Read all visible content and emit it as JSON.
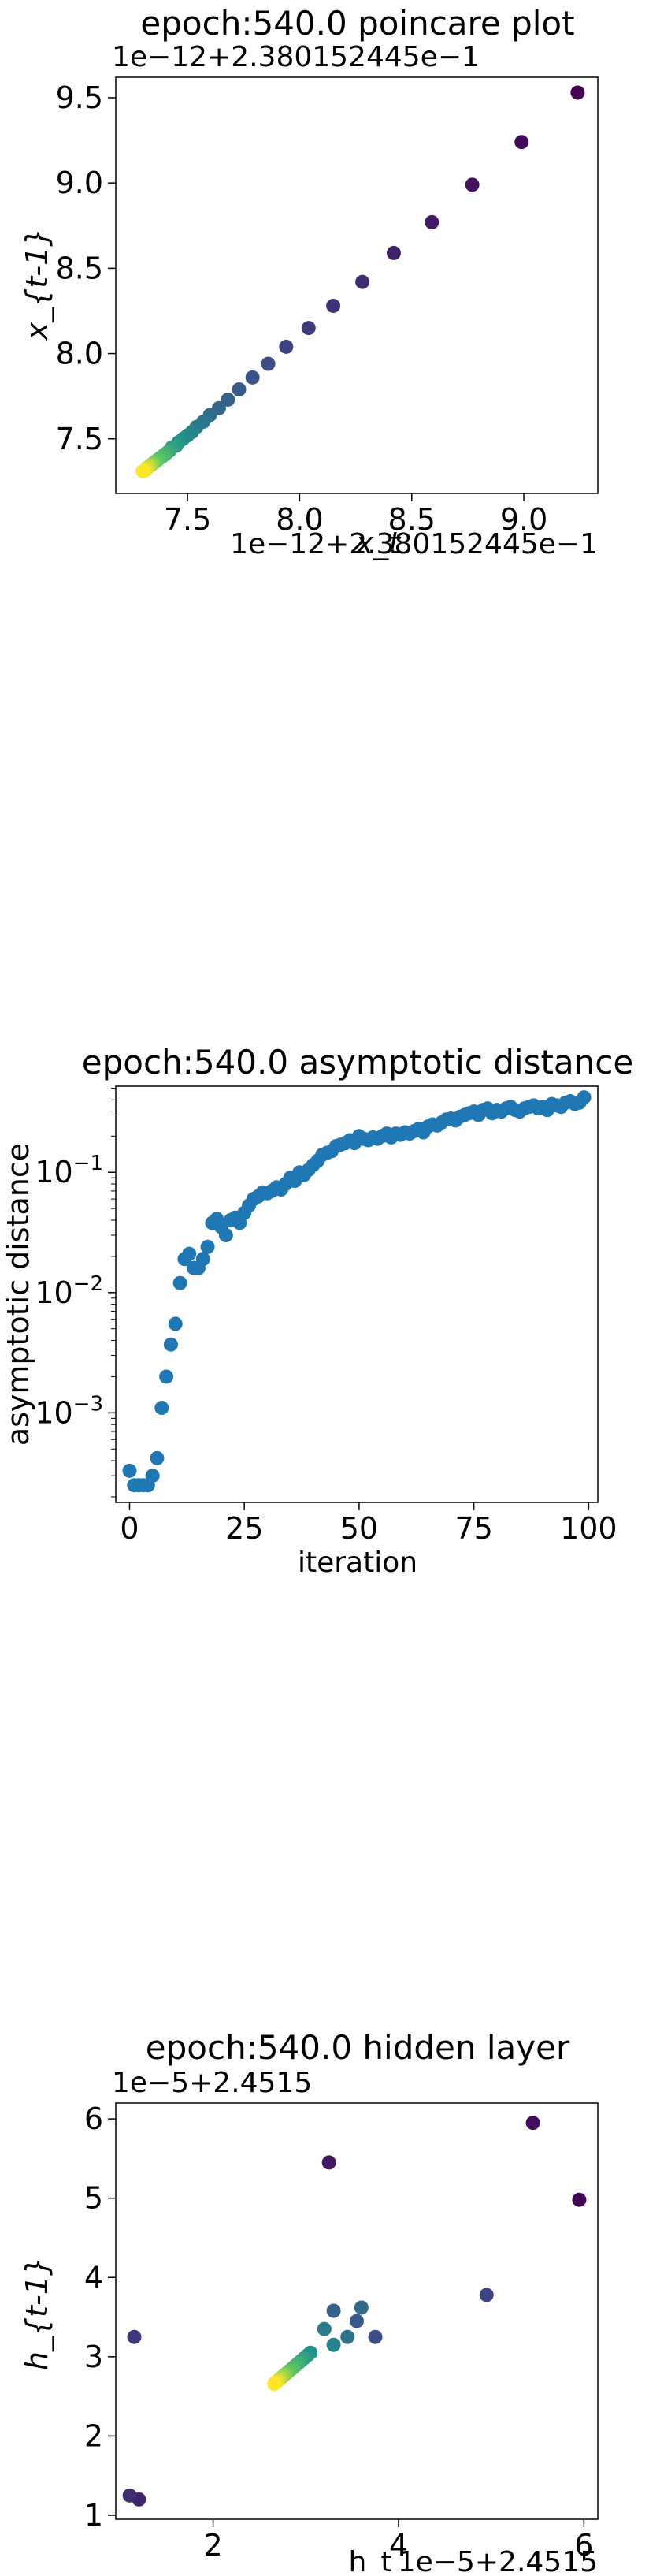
{
  "chart_data": [
    {
      "type": "scatter",
      "title": "epoch:540.0 poincare plot",
      "xlabel": "x_t",
      "ylabel": "x_{t-1}",
      "x_offset_label": "1e−12+2.380152445e−1",
      "y_offset_label": "1e−12+2.380152445e−1",
      "xlim": [
        7.18,
        9.33
      ],
      "ylim": [
        7.18,
        9.62
      ],
      "xticks": [
        7.5,
        8.0,
        8.5,
        9.0
      ],
      "xtick_labels": [
        "7.5",
        "8.0",
        "8.5",
        "9.0"
      ],
      "yticks": [
        7.5,
        8.0,
        8.5,
        9.0,
        9.5
      ],
      "ytick_labels": [
        "7.5",
        "8.0",
        "8.5",
        "9.0",
        "9.5"
      ],
      "colormap": [
        "#440154",
        "#3b528b",
        "#21918c",
        "#5ec962",
        "#fde725"
      ],
      "points": {
        "x": [
          9.24,
          8.99,
          8.77,
          8.59,
          8.42,
          8.28,
          8.15,
          8.04,
          7.94,
          7.86,
          7.79,
          7.73,
          7.68,
          7.64,
          7.6,
          7.57,
          7.54,
          7.52,
          7.5,
          7.48,
          7.46,
          7.45,
          7.43,
          7.42,
          7.41,
          7.4,
          7.39,
          7.38,
          7.37,
          7.36,
          7.35,
          7.345,
          7.34,
          7.335,
          7.33,
          7.325,
          7.32,
          7.315,
          7.31,
          7.3
        ],
        "y": [
          9.53,
          9.24,
          8.99,
          8.77,
          8.59,
          8.42,
          8.28,
          8.15,
          8.04,
          7.94,
          7.86,
          7.79,
          7.73,
          7.68,
          7.64,
          7.6,
          7.57,
          7.54,
          7.52,
          7.5,
          7.48,
          7.46,
          7.45,
          7.43,
          7.42,
          7.41,
          7.4,
          7.39,
          7.38,
          7.37,
          7.36,
          7.355,
          7.35,
          7.345,
          7.34,
          7.335,
          7.33,
          7.32,
          7.315,
          7.31
        ]
      }
    },
    {
      "type": "scatter",
      "title": "epoch:540.0 asymptotic distance",
      "xlabel": "iteration",
      "ylabel": "asymptotic distance",
      "yscale": "log",
      "xlim": [
        -3,
        102
      ],
      "ylim": [
        0.00018,
        0.52
      ],
      "xticks": [
        0,
        25,
        50,
        75,
        100
      ],
      "xtick_labels": [
        "0",
        "25",
        "50",
        "75",
        "100"
      ],
      "yticks": [
        0.001,
        0.01,
        0.1
      ],
      "ytick_labels": [
        "10−3",
        "10−2",
        "10−1"
      ],
      "color": "#1f77b4",
      "points": {
        "x": [
          0,
          1,
          2,
          3,
          4,
          5,
          6,
          7,
          8,
          9,
          10,
          11,
          12,
          13,
          14,
          15,
          16,
          17,
          18,
          19,
          20,
          21,
          22,
          23,
          24,
          25,
          26,
          27,
          28,
          29,
          30,
          31,
          32,
          33,
          34,
          35,
          36,
          37,
          38,
          39,
          40,
          41,
          42,
          43,
          44,
          45,
          46,
          47,
          48,
          49,
          50,
          51,
          52,
          53,
          54,
          55,
          56,
          57,
          58,
          59,
          60,
          61,
          62,
          63,
          64,
          65,
          66,
          67,
          68,
          69,
          70,
          71,
          72,
          73,
          74,
          75,
          76,
          77,
          78,
          79,
          80,
          81,
          82,
          83,
          84,
          85,
          86,
          87,
          88,
          89,
          90,
          91,
          92,
          93,
          94,
          95,
          96,
          97,
          98,
          99
        ],
        "y": [
          0.00033,
          0.00025,
          0.00025,
          0.00025,
          0.00025,
          0.0003,
          0.00042,
          0.0011,
          0.002,
          0.0037,
          0.0055,
          0.012,
          0.019,
          0.021,
          0.016,
          0.016,
          0.019,
          0.024,
          0.038,
          0.041,
          0.035,
          0.03,
          0.04,
          0.042,
          0.038,
          0.046,
          0.053,
          0.06,
          0.063,
          0.068,
          0.067,
          0.07,
          0.075,
          0.072,
          0.08,
          0.09,
          0.085,
          0.1,
          0.095,
          0.105,
          0.115,
          0.125,
          0.14,
          0.145,
          0.15,
          0.165,
          0.17,
          0.175,
          0.185,
          0.175,
          0.2,
          0.19,
          0.185,
          0.195,
          0.19,
          0.2,
          0.21,
          0.195,
          0.21,
          0.205,
          0.215,
          0.21,
          0.22,
          0.23,
          0.215,
          0.24,
          0.25,
          0.245,
          0.26,
          0.275,
          0.28,
          0.27,
          0.29,
          0.3,
          0.31,
          0.32,
          0.3,
          0.33,
          0.34,
          0.31,
          0.33,
          0.32,
          0.34,
          0.35,
          0.33,
          0.32,
          0.34,
          0.35,
          0.36,
          0.34,
          0.35,
          0.33,
          0.37,
          0.36,
          0.35,
          0.38,
          0.39,
          0.37,
          0.38,
          0.42
        ]
      }
    },
    {
      "type": "scatter",
      "title": "epoch:540.0 hidden layer",
      "xlabel": "h_t",
      "ylabel": "h_{t-1}",
      "x_offset_label": "1e−5+2.4515",
      "y_offset_label": "1e−5+2.4515",
      "xlim": [
        0.95,
        6.15
      ],
      "ylim": [
        0.95,
        6.2
      ],
      "xticks": [
        2,
        4,
        6
      ],
      "xtick_labels": [
        "2",
        "4",
        "6"
      ],
      "yticks": [
        1,
        2,
        3,
        4,
        5,
        6
      ],
      "ytick_labels": [
        "1",
        "2",
        "3",
        "4",
        "5",
        "6"
      ],
      "colormap": [
        "#440154",
        "#3b528b",
        "#21918c",
        "#5ec962",
        "#fde725"
      ],
      "points": {
        "x": [
          5.95,
          5.45,
          3.25,
          1.2,
          1.1,
          1.15,
          4.95,
          3.75,
          3.55,
          3.3,
          3.6,
          3.45,
          3.2,
          3.3,
          3.05,
          3.02,
          2.98,
          2.95,
          2.92,
          2.89,
          2.86,
          2.83,
          2.8,
          2.78,
          2.76,
          2.74,
          2.72,
          2.7,
          2.68,
          2.66
        ],
        "y": [
          4.98,
          5.95,
          5.45,
          1.2,
          1.25,
          3.25,
          3.78,
          3.25,
          3.45,
          3.58,
          3.62,
          3.25,
          3.35,
          3.15,
          3.05,
          3.02,
          2.98,
          2.95,
          2.92,
          2.89,
          2.86,
          2.83,
          2.8,
          2.78,
          2.76,
          2.74,
          2.72,
          2.7,
          2.68,
          2.66
        ]
      }
    }
  ]
}
